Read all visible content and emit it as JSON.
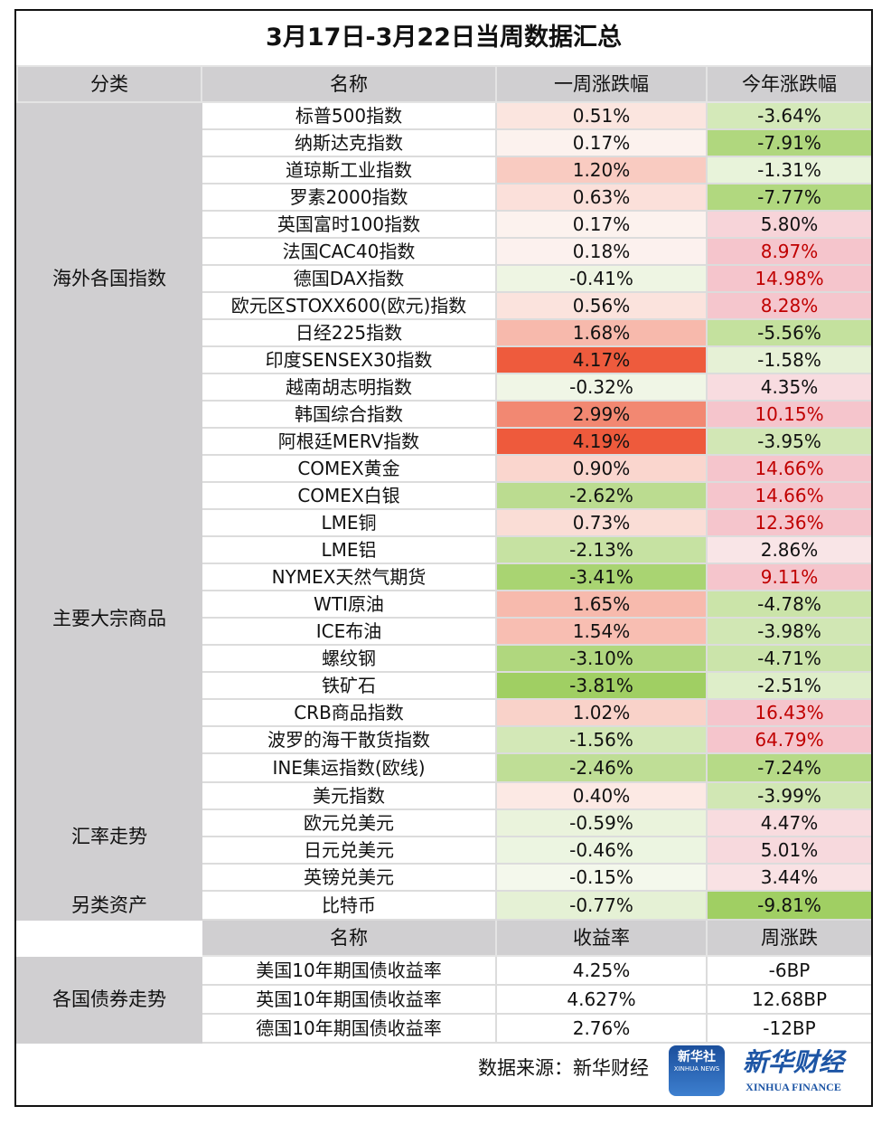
{
  "title": "3月17日-3月22日当周数据汇总",
  "header": {
    "category": "分类",
    "name": "名称",
    "week": "一周涨跌幅",
    "ytd": "今年涨跌幅"
  },
  "colors": {
    "header_bg": "#d0cfd1",
    "red_strong": "#ee5a3c",
    "green_strong": "#a0cf63",
    "pink": "#f5c5cc",
    "red_text": "#c00000"
  },
  "groups": [
    {
      "category": "海外各国指数",
      "rows": [
        {
          "name": "标普500指数",
          "week": "0.51%",
          "ytd": "-3.64%"
        },
        {
          "name": "纳斯达克指数",
          "week": "0.17%",
          "ytd": "-7.91%"
        },
        {
          "name": "道琼斯工业指数",
          "week": "1.20%",
          "ytd": "-1.31%"
        },
        {
          "name": "罗素2000指数",
          "week": "0.63%",
          "ytd": "-7.77%"
        },
        {
          "name": "英国富时100指数",
          "week": "0.17%",
          "ytd": "5.80%"
        },
        {
          "name": "法国CAC40指数",
          "week": "0.18%",
          "ytd": "8.97%"
        },
        {
          "name": "德国DAX指数",
          "week": "-0.41%",
          "ytd": "14.98%"
        },
        {
          "name": "欧元区STOXX600(欧元)指数",
          "week": "0.56%",
          "ytd": "8.28%"
        },
        {
          "name": "日经225指数",
          "week": "1.68%",
          "ytd": "-5.56%"
        },
        {
          "name": "印度SENSEX30指数",
          "week": "4.17%",
          "ytd": "-1.58%"
        },
        {
          "name": "越南胡志明指数",
          "week": "-0.32%",
          "ytd": "4.35%"
        },
        {
          "name": "韩国综合指数",
          "week": "2.99%",
          "ytd": "10.15%"
        },
        {
          "name": "阿根廷MERV指数",
          "week": "4.19%",
          "ytd": "-3.95%"
        }
      ]
    },
    {
      "category": "主要大宗商品",
      "rows": [
        {
          "name": "COMEX黄金",
          "week": "0.90%",
          "ytd": "14.66%"
        },
        {
          "name": "COMEX白银",
          "week": "-2.62%",
          "ytd": "14.66%"
        },
        {
          "name": "LME铜",
          "week": "0.73%",
          "ytd": "12.36%"
        },
        {
          "name": "LME铝",
          "week": "-2.13%",
          "ytd": "2.86%"
        },
        {
          "name": "NYMEX天然气期货",
          "week": "-3.41%",
          "ytd": "9.11%"
        },
        {
          "name": "WTI原油",
          "week": "1.65%",
          "ytd": "-4.78%"
        },
        {
          "name": "ICE布油",
          "week": "1.54%",
          "ytd": "-3.98%"
        },
        {
          "name": "螺纹钢",
          "week": "-3.10%",
          "ytd": "-4.71%"
        },
        {
          "name": "铁矿石",
          "week": "-3.81%",
          "ytd": "-2.51%"
        },
        {
          "name": "CRB商品指数",
          "week": "1.02%",
          "ytd": "16.43%"
        },
        {
          "name": "波罗的海干散货指数",
          "week": "-1.56%",
          "ytd": "64.79%"
        },
        {
          "name": "INE集运指数(欧线)",
          "week": "-2.46%",
          "ytd": "-7.24%"
        }
      ]
    },
    {
      "category": "汇率走势",
      "rows": [
        {
          "name": "美元指数",
          "week": "0.40%",
          "ytd": "-3.99%"
        },
        {
          "name": "欧元兑美元",
          "week": "-0.59%",
          "ytd": "4.47%"
        },
        {
          "name": "日元兑美元",
          "week": "-0.46%",
          "ytd": "5.01%"
        },
        {
          "name": "英镑兑美元",
          "week": "-0.15%",
          "ytd": "3.44%"
        }
      ]
    },
    {
      "category": "另类资产",
      "rows": [
        {
          "name": "比特币",
          "week": "-0.77%",
          "ytd": "-9.81%"
        }
      ]
    }
  ],
  "bonds": {
    "header": {
      "name": "名称",
      "yield": "收益率",
      "change": "周涨跌"
    },
    "category": "各国债券走势",
    "rows": [
      {
        "name": "美国10年期国债收益率",
        "yield": "4.25%",
        "change": "-6BP"
      },
      {
        "name": "英国10年期国债收益率",
        "yield": "4.627%",
        "change": "12.68BP"
      },
      {
        "name": "德国10年期国债收益率",
        "yield": "2.76%",
        "change": "-12BP"
      }
    ]
  },
  "footer": {
    "source": "数据来源：新华财经",
    "logo_xinhua_cn": "新华社",
    "logo_xinhua_en": "XINHUA NEWS",
    "logo_finance_cn": "新华财经",
    "logo_finance_en": "XINHUA FINANCE"
  }
}
